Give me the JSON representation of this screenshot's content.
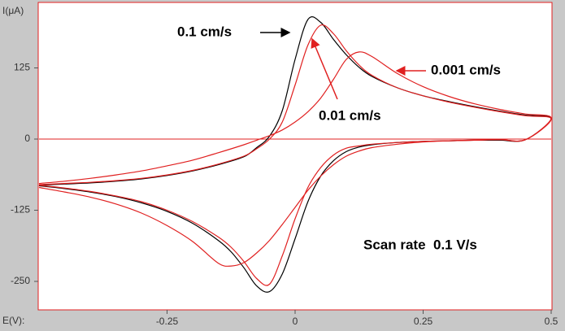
{
  "chart_data": {
    "type": "line",
    "y_label": "I(μA)",
    "x_label": "E(V):",
    "x": [
      -0.5,
      -0.45,
      -0.4,
      -0.35,
      -0.3,
      -0.25,
      -0.2,
      -0.15,
      -0.1,
      -0.075,
      -0.05,
      -0.025,
      0,
      0.025,
      0.05,
      0.075,
      0.1,
      0.125,
      0.15,
      0.2,
      0.25,
      0.3,
      0.35,
      0.4,
      0.45,
      0.5,
      0.45,
      0.4,
      0.35,
      0.3,
      0.25,
      0.2,
      0.15,
      0.125,
      0.1,
      0.075,
      0.05,
      0.025,
      0,
      -0.025,
      -0.05,
      -0.075,
      -0.1,
      -0.125,
      -0.15,
      -0.2,
      -0.25,
      -0.3,
      -0.35,
      -0.4,
      -0.45,
      -0.5
    ],
    "series": [
      {
        "name": "0.1 cm/s",
        "color": "#000000",
        "values": [
          -81,
          -79,
          -77,
          -74,
          -70,
          -64,
          -56,
          -45,
          -31,
          -15,
          5,
          50,
          140,
          210,
          205,
          175,
          148,
          126,
          110,
          90,
          76,
          66,
          57,
          49,
          42,
          36,
          -1,
          -2,
          -2,
          -3,
          -4,
          -6,
          -10,
          -14,
          -22,
          -38,
          -65,
          -110,
          -175,
          -237,
          -268,
          -258,
          -226,
          -198,
          -178,
          -148,
          -127,
          -112,
          -101,
          -93,
          -87,
          -82
        ]
      },
      {
        "name": "0.01 cm/s",
        "color": "#e02020",
        "values": [
          -80,
          -78,
          -76,
          -73,
          -69,
          -63,
          -55,
          -44,
          -30,
          -17,
          0,
          30,
          95,
          165,
          200,
          185,
          155,
          130,
          112,
          90,
          76,
          65,
          56,
          48,
          41,
          35,
          -1,
          -1,
          -2,
          -3,
          -4,
          -6,
          -9,
          -12,
          -16,
          -28,
          -50,
          -85,
          -140,
          -205,
          -255,
          -245,
          -215,
          -190,
          -172,
          -145,
          -125,
          -110,
          -100,
          -92,
          -86,
          -81
        ]
      },
      {
        "name": "0.001 cm/s",
        "color": "#e02020",
        "values": [
          -78,
          -74,
          -69,
          -63,
          -56,
          -47,
          -37,
          -24,
          -10,
          -2,
          6,
          16,
          30,
          48,
          72,
          105,
          140,
          153,
          145,
          115,
          92,
          75,
          62,
          52,
          44,
          37,
          -1,
          -1,
          -2,
          -3,
          -5,
          -9,
          -15,
          -21,
          -30,
          -45,
          -65,
          -90,
          -120,
          -150,
          -178,
          -200,
          -217,
          -223,
          -218,
          -180,
          -152,
          -130,
          -114,
          -102,
          -93,
          -85
        ]
      }
    ],
    "annotations": [
      "0.1 cm/s",
      "0.01 cm/s",
      "0.001 cm/s",
      "Scan rate  0.1 V/s"
    ],
    "xlim": [
      -0.5,
      0.5
    ],
    "ylim": [
      -300,
      240
    ],
    "xticks": [
      -0.25,
      0,
      0.25,
      0.5
    ],
    "yticks": [
      125,
      0,
      -125,
      -250
    ]
  }
}
